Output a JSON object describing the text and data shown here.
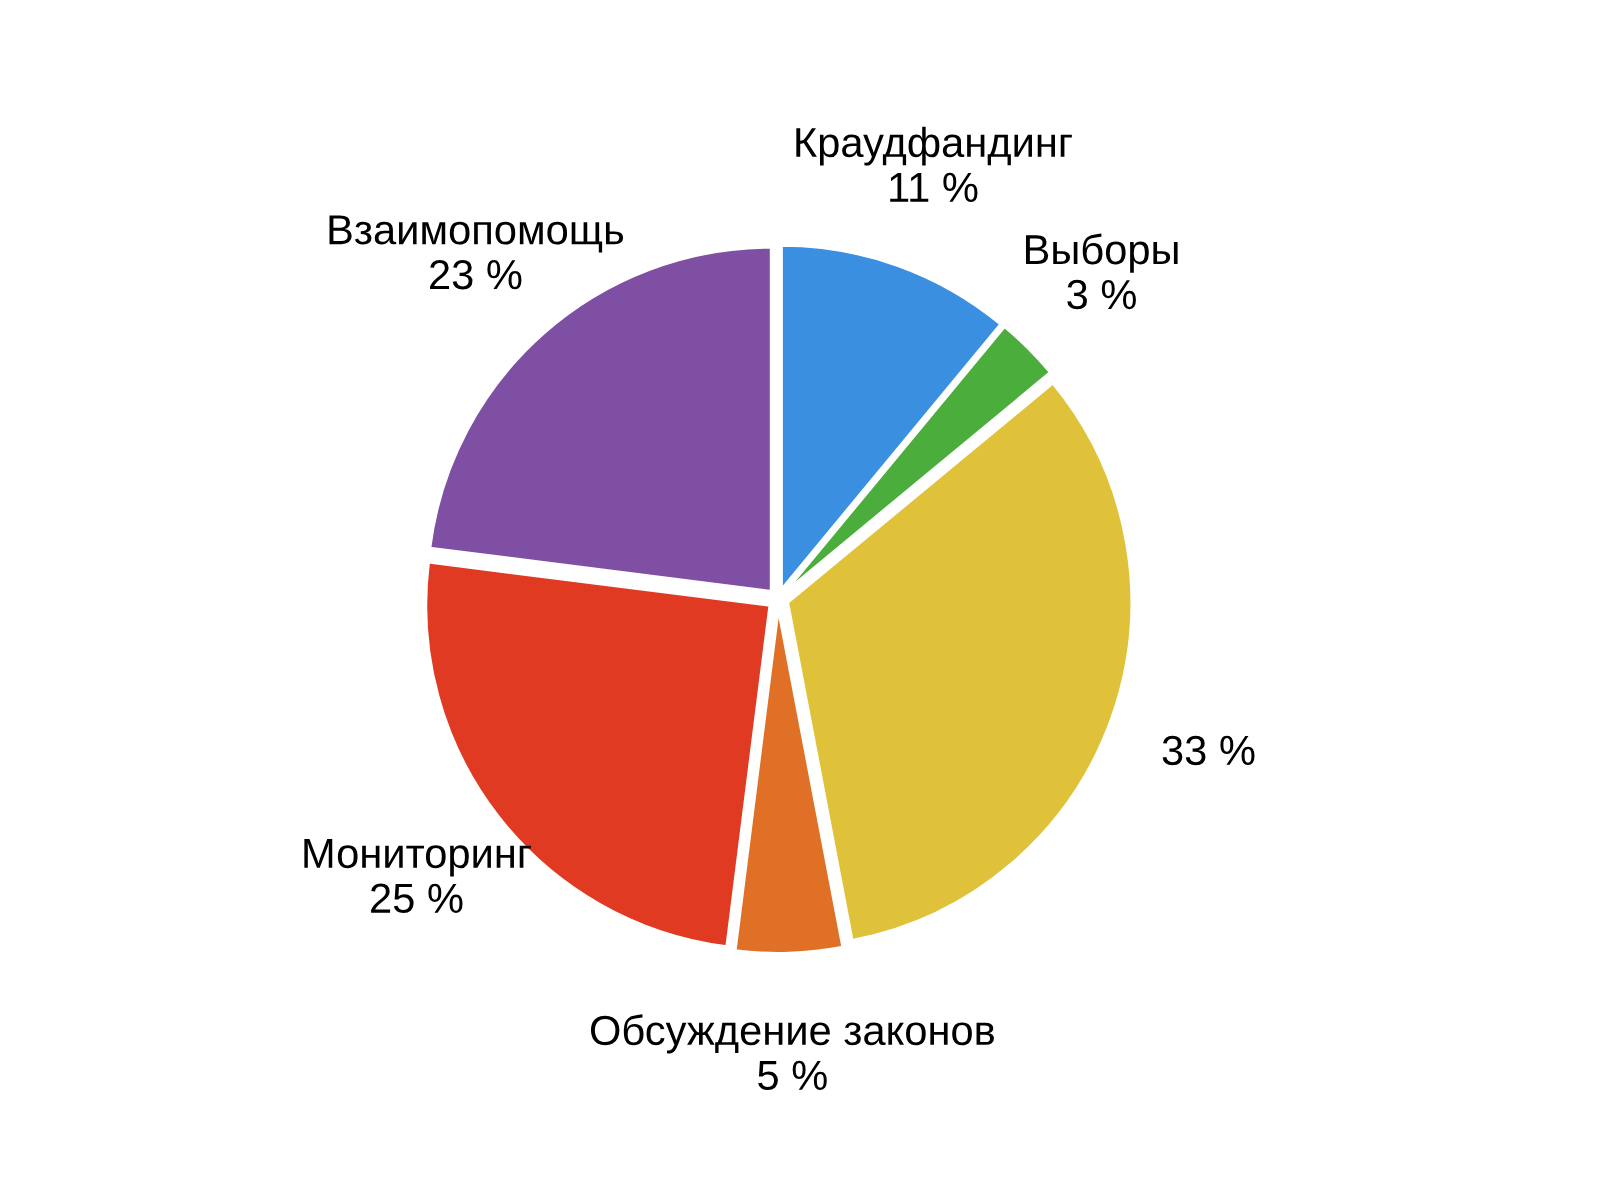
{
  "chart_data": {
    "type": "pie",
    "categories": [
      "Краудфандинг",
      "Выборы",
      null,
      "Обсуждение законов",
      "Мониторинг",
      "Взаимопомощь"
    ],
    "values": [
      11,
      3,
      33,
      5,
      25,
      23
    ],
    "value_labels": [
      "11 %",
      "3 %",
      "33 %",
      "5 %",
      "25 %",
      "23 %"
    ],
    "colors": [
      "#3a8fe0",
      "#4aad3c",
      "#e0c23a",
      "#e07025",
      "#e03a22",
      "#7e4fa3"
    ],
    "legend": false
  }
}
